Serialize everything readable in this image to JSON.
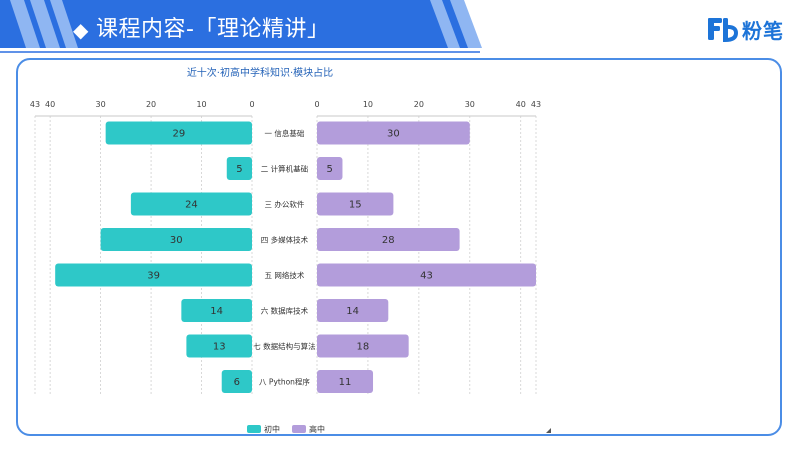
{
  "header": {
    "bullet": "◆",
    "title": "课程内容-「理论精讲」",
    "brand_text": "粉笔",
    "brand_icon": "fenbi-logo-icon",
    "band_color": "#2b6fe0"
  },
  "chart_data": {
    "type": "bar",
    "layout": "butterfly",
    "title": "近十次·初高中学科知识·模块占比",
    "categories": [
      "一 信息基础",
      "二 计算机基础",
      "三 办公软件",
      "四 多媒体技术",
      "五 网络技术",
      "六 数据库技术",
      "七 数据结构与算法",
      "八 Python程序"
    ],
    "series": [
      {
        "name": "初中",
        "values": [
          29,
          5,
          24,
          30,
          39,
          14,
          13,
          6
        ],
        "color": "#2ec8c8",
        "side": "left"
      },
      {
        "name": "高中",
        "values": [
          30,
          5,
          15,
          28,
          43,
          14,
          18,
          11
        ],
        "color": "#b39ddb",
        "side": "right"
      }
    ],
    "xlim": [
      0,
      43
    ],
    "xticks": [
      0,
      10,
      20,
      30,
      40,
      43
    ],
    "grid": true,
    "legend_position": "bottom"
  }
}
